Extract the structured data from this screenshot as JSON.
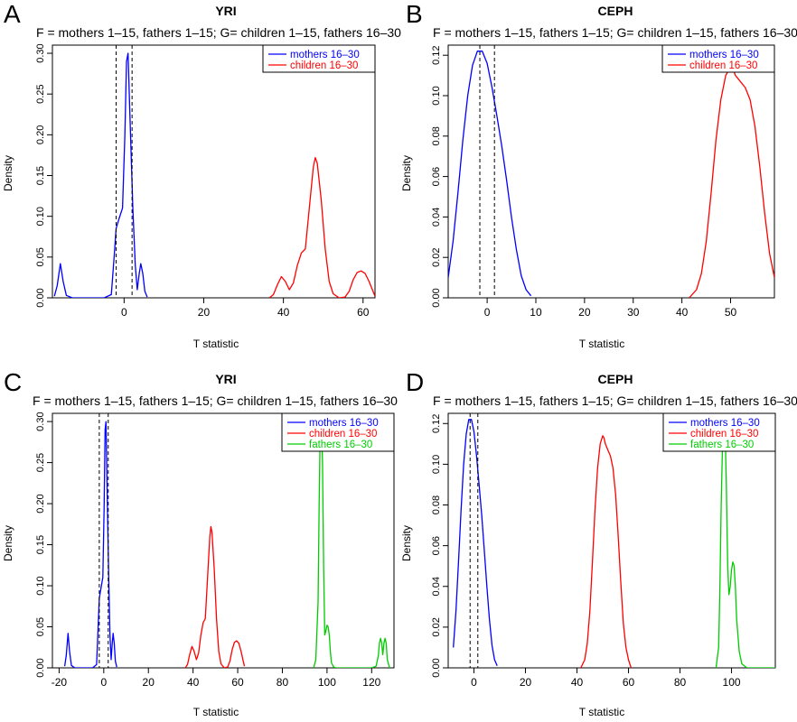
{
  "chart_data": [
    {
      "panel": "A",
      "type": "line",
      "title": "YRI",
      "subtitle": "F = mothers 1–15, fathers 1–15; G= children 1–15, fathers 16–30",
      "xlabel": "T statistic",
      "ylabel": "Density",
      "xlim": [
        -18,
        63
      ],
      "ylim": [
        0,
        0.31
      ],
      "xticks": [
        0,
        20,
        40,
        60
      ],
      "yticks": [
        0.0,
        0.05,
        0.1,
        0.15,
        0.2,
        0.25,
        0.3
      ],
      "vlines": [
        -2.0,
        2.0
      ],
      "legend": "top-right",
      "series": [
        {
          "name": "mothers 16–30",
          "color": "#0000ff",
          "x": [
            -17.5,
            -16.8,
            -16,
            -15.3,
            -14.5,
            -13,
            -10,
            -5,
            -3.2,
            -2.5,
            -2,
            -1.2,
            -0.4,
            0.2,
            0.6,
            1.0,
            1.5,
            2.2,
            2.8,
            3.3,
            3.8,
            4.2,
            4.7,
            5.2,
            5.8
          ],
          "y": [
            0.002,
            0.015,
            0.042,
            0.02,
            0.003,
            0.0,
            0.0,
            0.0,
            0.004,
            0.05,
            0.085,
            0.098,
            0.11,
            0.2,
            0.29,
            0.3,
            0.22,
            0.11,
            0.04,
            0.01,
            0.03,
            0.042,
            0.03,
            0.008,
            0.001
          ]
        },
        {
          "name": "children 16–30",
          "color": "#ff0000",
          "x": [
            36.5,
            37.5,
            38.5,
            39.5,
            40.5,
            41.5,
            42.5,
            43.5,
            44.5,
            45.5,
            46.5,
            47.5,
            48.0,
            48.5,
            49.5,
            50.5,
            51.5,
            52.5,
            54,
            55.5,
            56.5,
            57.5,
            58.5,
            59.5,
            60.5,
            61.5,
            62.5,
            63
          ],
          "y": [
            0.0,
            0.004,
            0.016,
            0.026,
            0.02,
            0.01,
            0.018,
            0.04,
            0.055,
            0.06,
            0.11,
            0.16,
            0.172,
            0.165,
            0.12,
            0.06,
            0.02,
            0.005,
            0.0,
            0.001,
            0.008,
            0.022,
            0.031,
            0.033,
            0.03,
            0.02,
            0.008,
            0.002
          ]
        }
      ]
    },
    {
      "panel": "B",
      "type": "line",
      "title": "CEPH",
      "subtitle": "F = mothers 1–15, fathers 1–15; G= children 1–15, fathers 16–30",
      "xlabel": "T statistic",
      "ylabel": "Density",
      "xlim": [
        -8,
        59
      ],
      "ylim": [
        0,
        0.125
      ],
      "xticks": [
        0,
        10,
        20,
        30,
        40,
        50
      ],
      "yticks": [
        0.0,
        0.02,
        0.04,
        0.06,
        0.08,
        0.1,
        0.12
      ],
      "vlines": [
        -1.5,
        1.5
      ],
      "legend": "top-right",
      "series": [
        {
          "name": "mothers 16–30",
          "color": "#0000ff",
          "x": [
            -8,
            -7,
            -6,
            -5,
            -4,
            -3,
            -2,
            -1,
            0,
            1,
            2,
            3,
            4,
            5,
            6,
            7,
            8,
            9
          ],
          "y": [
            0.01,
            0.028,
            0.052,
            0.078,
            0.1,
            0.115,
            0.122,
            0.122,
            0.116,
            0.104,
            0.09,
            0.075,
            0.058,
            0.04,
            0.024,
            0.011,
            0.004,
            0.001
          ]
        },
        {
          "name": "children 16–30",
          "color": "#ff0000",
          "x": [
            41.5,
            43,
            44,
            45,
            46,
            47,
            48,
            49,
            50,
            50.5,
            51,
            52,
            53,
            54,
            55,
            56,
            57,
            58,
            59
          ],
          "y": [
            0.0,
            0.004,
            0.012,
            0.028,
            0.052,
            0.078,
            0.098,
            0.11,
            0.114,
            0.113,
            0.11,
            0.107,
            0.104,
            0.098,
            0.085,
            0.065,
            0.042,
            0.022,
            0.01
          ]
        }
      ]
    },
    {
      "panel": "C",
      "type": "line",
      "title": "YRI",
      "subtitle": "F = mothers 1–15, fathers 1–15; G= children 1–15, fathers 16–30",
      "xlabel": "T statistic",
      "ylabel": "Density",
      "xlim": [
        -23,
        130
      ],
      "ylim": [
        0,
        0.31
      ],
      "xticks": [
        -20,
        0,
        20,
        40,
        60,
        80,
        100,
        120
      ],
      "yticks": [
        0.0,
        0.05,
        0.1,
        0.15,
        0.2,
        0.25,
        0.3
      ],
      "vlines": [
        -2.0,
        2.0
      ],
      "legend": "top-right",
      "series": [
        {
          "name": "mothers 16–30",
          "color": "#0000ff",
          "x": [
            -17.5,
            -16.8,
            -16,
            -15.3,
            -14.5,
            -13,
            -10,
            -5,
            -3.2,
            -2.5,
            -2,
            -1.2,
            -0.4,
            0.2,
            0.6,
            1.0,
            1.5,
            2.2,
            2.8,
            3.3,
            3.8,
            4.2,
            4.7,
            5.2,
            5.8
          ],
          "y": [
            0.002,
            0.015,
            0.042,
            0.02,
            0.003,
            0.0,
            0.0,
            0.0,
            0.004,
            0.05,
            0.085,
            0.098,
            0.11,
            0.2,
            0.29,
            0.3,
            0.22,
            0.11,
            0.04,
            0.01,
            0.03,
            0.042,
            0.03,
            0.008,
            0.001
          ]
        },
        {
          "name": "children 16–30",
          "color": "#ff0000",
          "x": [
            36.5,
            37.5,
            38.5,
            39.5,
            40.5,
            41.5,
            42.5,
            43.5,
            44.5,
            45.5,
            46.5,
            47.5,
            48.0,
            48.5,
            49.5,
            50.5,
            51.5,
            52.5,
            54,
            55.5,
            56.5,
            57.5,
            58.5,
            59.5,
            60.5,
            61.5,
            62.5,
            63
          ],
          "y": [
            0.0,
            0.004,
            0.016,
            0.026,
            0.02,
            0.01,
            0.018,
            0.04,
            0.055,
            0.06,
            0.11,
            0.16,
            0.172,
            0.165,
            0.12,
            0.06,
            0.02,
            0.005,
            0.0,
            0.001,
            0.008,
            0.022,
            0.031,
            0.033,
            0.03,
            0.02,
            0.008,
            0.002
          ]
        },
        {
          "name": "fathers 16–30",
          "color": "#00cc00",
          "x": [
            94,
            95,
            96,
            96.5,
            97,
            97.5,
            98,
            98.5,
            99,
            99.5,
            100,
            100.5,
            101,
            101.5,
            102,
            103,
            104,
            110,
            120,
            122,
            123,
            123.5,
            124,
            124.5,
            125,
            125.5,
            126,
            126.5,
            127,
            128
          ],
          "y": [
            0.0,
            0.01,
            0.08,
            0.2,
            0.3,
            0.3,
            0.25,
            0.12,
            0.04,
            0.045,
            0.052,
            0.05,
            0.04,
            0.02,
            0.006,
            0.001,
            0.0,
            0.0,
            0.0,
            0.002,
            0.015,
            0.03,
            0.036,
            0.03,
            0.016,
            0.03,
            0.036,
            0.03,
            0.01,
            0.0
          ]
        }
      ]
    },
    {
      "panel": "D",
      "type": "line",
      "title": "CEPH",
      "subtitle": "F = mothers 1–15, fathers 1–15; G= children 1–15, fathers 16–30",
      "xlabel": "T statistic",
      "ylabel": "Density",
      "xlim": [
        -10,
        117
      ],
      "ylim": [
        0,
        0.125
      ],
      "xticks": [
        0,
        20,
        40,
        60,
        80,
        100
      ],
      "yticks": [
        0.0,
        0.02,
        0.04,
        0.06,
        0.08,
        0.1,
        0.12
      ],
      "vlines": [
        -1.5,
        1.5
      ],
      "legend": "top-right",
      "series": [
        {
          "name": "mothers 16–30",
          "color": "#0000ff",
          "x": [
            -8,
            -7,
            -6,
            -5,
            -4,
            -3,
            -2,
            -1,
            0,
            1,
            2,
            3,
            4,
            5,
            6,
            7,
            8,
            9
          ],
          "y": [
            0.01,
            0.028,
            0.052,
            0.078,
            0.1,
            0.115,
            0.122,
            0.122,
            0.116,
            0.104,
            0.09,
            0.075,
            0.058,
            0.04,
            0.024,
            0.011,
            0.004,
            0.001
          ]
        },
        {
          "name": "children 16–30",
          "color": "#ff0000",
          "x": [
            41.5,
            43,
            44,
            45,
            46,
            47,
            48,
            49,
            50,
            50.5,
            51,
            52,
            53,
            54,
            55,
            56,
            57,
            58,
            59,
            60,
            61
          ],
          "y": [
            0.0,
            0.004,
            0.012,
            0.028,
            0.052,
            0.078,
            0.098,
            0.11,
            0.114,
            0.113,
            0.11,
            0.107,
            0.104,
            0.098,
            0.085,
            0.065,
            0.042,
            0.022,
            0.01,
            0.004,
            0.0
          ]
        },
        {
          "name": "fathers 16–30",
          "color": "#00cc00",
          "x": [
            94,
            95,
            95.5,
            96,
            96.5,
            97,
            97.5,
            98,
            98.5,
            99,
            99.5,
            100,
            100.5,
            101,
            101.5,
            102,
            103,
            104,
            106,
            110,
            117
          ],
          "y": [
            0.0,
            0.01,
            0.04,
            0.08,
            0.11,
            0.118,
            0.118,
            0.09,
            0.05,
            0.036,
            0.04,
            0.048,
            0.052,
            0.05,
            0.04,
            0.024,
            0.008,
            0.002,
            0.0,
            0.0,
            0.0
          ]
        }
      ]
    }
  ]
}
